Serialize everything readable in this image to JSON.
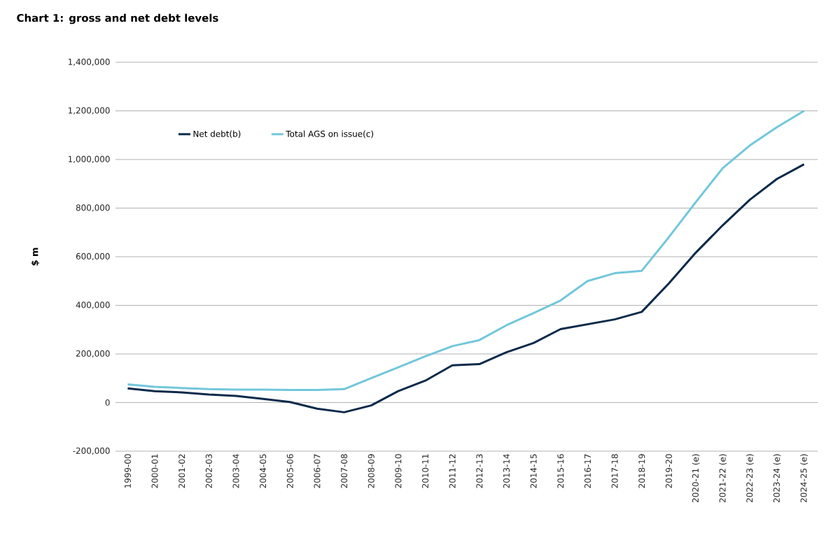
{
  "chart_data": {
    "type": "line",
    "title": "Chart 1: gross and net debt levels",
    "ylabel": "$ m",
    "categories": [
      "1999-00",
      "2000-01",
      "2001-02",
      "2002-03",
      "2003-04",
      "2004-05",
      "2005-06",
      "2006-07",
      "2007-08",
      "2008-09",
      "2009-10",
      "2010-11",
      "2011-12",
      "2012-13",
      "2013-14",
      "2014-15",
      "2015-16",
      "2016-17",
      "2017-18",
      "2018-19",
      "2019-20",
      "2020-21 (e)",
      "2021-22 (e)",
      "2022-23 (e)",
      "2023-24 (e)",
      "2024-25 (e)"
    ],
    "series": [
      {
        "name": "Net debt(b)",
        "color": "#0b2a4a",
        "values": [
          58000,
          47000,
          42000,
          33000,
          27000,
          15000,
          2000,
          -25000,
          -40000,
          -12000,
          47000,
          90000,
          153000,
          158000,
          207000,
          245000,
          302000,
          322000,
          342000,
          373000,
          490000,
          617000,
          730000,
          835000,
          920000,
          980000
        ]
      },
      {
        "name": "Total AGS on issue(c)",
        "color": "#72c7db",
        "values": [
          75000,
          65000,
          60000,
          55000,
          53000,
          53000,
          52000,
          52000,
          55000,
          100000,
          145000,
          190000,
          232000,
          257000,
          318000,
          368000,
          420000,
          500000,
          532000,
          542000,
          680000,
          825000,
          965000,
          1058000,
          1133000,
          1200000
        ]
      }
    ],
    "ylim": [
      -200000,
      1400000
    ],
    "yticks": [
      {
        "value": -200000,
        "label": "-200,000"
      },
      {
        "value": 0,
        "label": "0"
      },
      {
        "value": 200000,
        "label": "200,000"
      },
      {
        "value": 400000,
        "label": "400,000"
      },
      {
        "value": 600000,
        "label": "600,000"
      },
      {
        "value": 800000,
        "label": "800,000"
      },
      {
        "value": 1000000,
        "label": "1,000,000"
      },
      {
        "value": 1200000,
        "label": "1,200,000"
      },
      {
        "value": 1400000,
        "label": "1,400,000"
      }
    ],
    "grid": "y",
    "legend": "top left",
    "marker": "none",
    "line_style": "solid"
  }
}
